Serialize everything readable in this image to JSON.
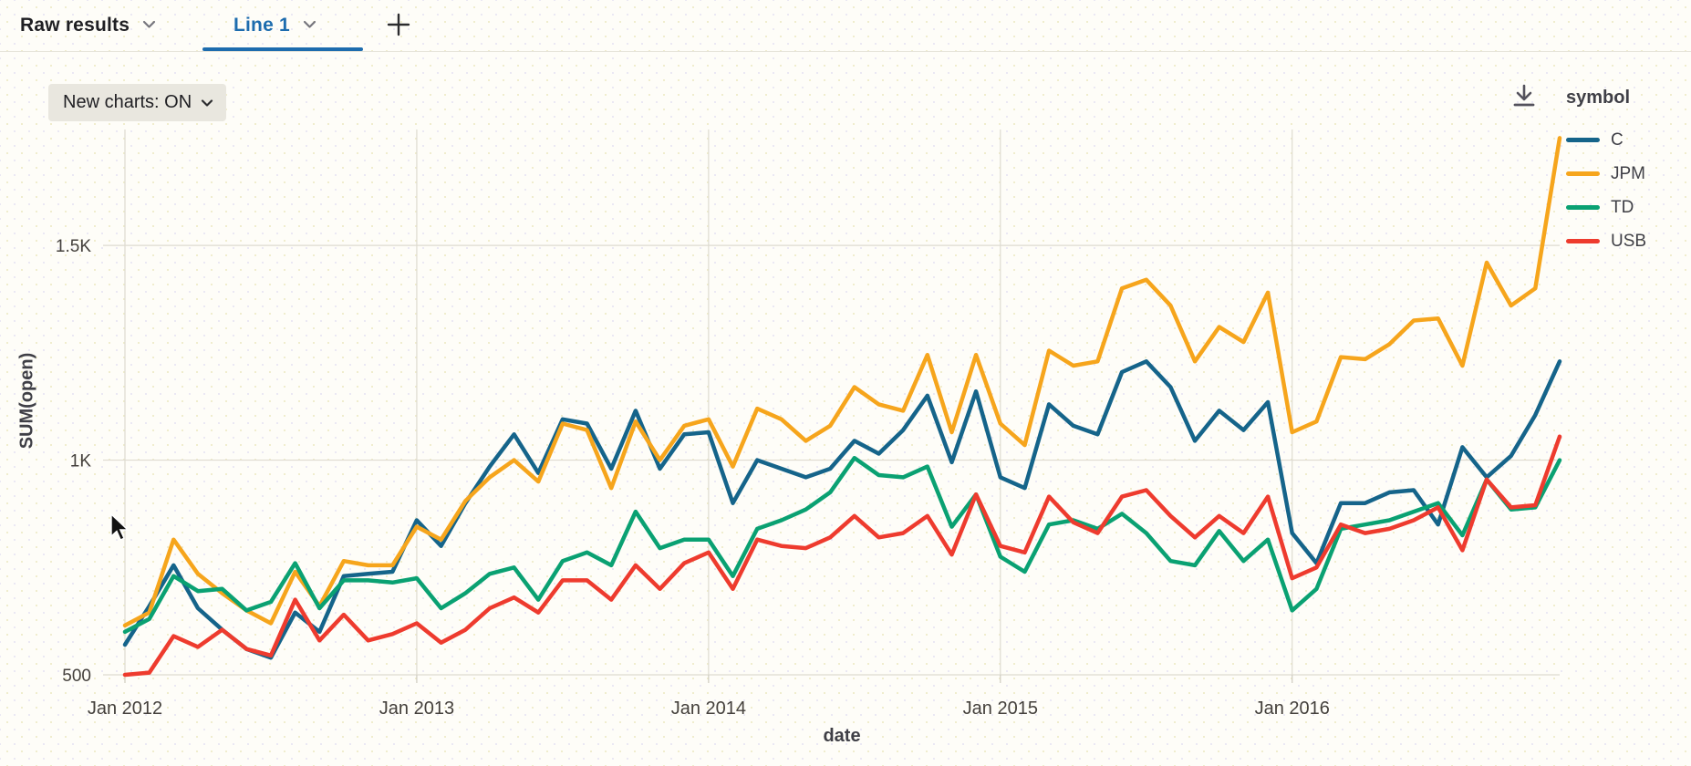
{
  "tabs": {
    "raw_results_label": "Raw results",
    "line1_label": "Line 1"
  },
  "toolbar": {
    "new_charts_label": "New charts: ON"
  },
  "icons": {
    "chevron_down": "chevron-down-icon",
    "plus": "plus-icon",
    "download": "download-icon"
  },
  "legend": {
    "title": "symbol",
    "items": [
      {
        "label": "C",
        "color": "#15648a"
      },
      {
        "label": "JPM",
        "color": "#f6a51c"
      },
      {
        "label": "TD",
        "color": "#0aa172"
      },
      {
        "label": "USB",
        "color": "#ee3b2e"
      }
    ]
  },
  "chart_data": {
    "type": "line",
    "title": "",
    "xlabel": "date",
    "ylabel": "SUM(open)",
    "legend_position": "right",
    "grid": true,
    "ylim": [
      500,
      1770
    ],
    "y_ticks": [
      {
        "value": 500,
        "label": "500"
      },
      {
        "value": 1000,
        "label": "1K"
      },
      {
        "value": 1500,
        "label": "1.5K"
      }
    ],
    "x_ticks": [
      {
        "month_index": 0,
        "label": "Jan 2012"
      },
      {
        "month_index": 12,
        "label": "Jan 2013"
      },
      {
        "month_index": 24,
        "label": "Jan 2014"
      },
      {
        "month_index": 36,
        "label": "Jan 2015"
      },
      {
        "month_index": 48,
        "label": "Jan 2016"
      }
    ],
    "x": [
      "2012-01",
      "2012-02",
      "2012-03",
      "2012-04",
      "2012-05",
      "2012-06",
      "2012-07",
      "2012-08",
      "2012-09",
      "2012-10",
      "2012-11",
      "2012-12",
      "2013-01",
      "2013-02",
      "2013-03",
      "2013-04",
      "2013-05",
      "2013-06",
      "2013-07",
      "2013-08",
      "2013-09",
      "2013-10",
      "2013-11",
      "2013-12",
      "2014-01",
      "2014-02",
      "2014-03",
      "2014-04",
      "2014-05",
      "2014-06",
      "2014-07",
      "2014-08",
      "2014-09",
      "2014-10",
      "2014-11",
      "2014-12",
      "2015-01",
      "2015-02",
      "2015-03",
      "2015-04",
      "2015-05",
      "2015-06",
      "2015-07",
      "2015-08",
      "2015-09",
      "2015-10",
      "2015-11",
      "2015-12",
      "2016-01",
      "2016-02",
      "2016-03",
      "2016-04",
      "2016-05",
      "2016-06",
      "2016-07",
      "2016-08",
      "2016-09",
      "2016-10",
      "2016-11",
      "2016-12"
    ],
    "series": [
      {
        "name": "C",
        "color": "#15648a",
        "values": [
          570,
          660,
          755,
          655,
          605,
          560,
          540,
          645,
          600,
          730,
          735,
          740,
          860,
          800,
          900,
          985,
          1060,
          970,
          1095,
          1085,
          980,
          1115,
          980,
          1060,
          1065,
          900,
          1000,
          980,
          960,
          980,
          1045,
          1015,
          1070,
          1150,
          995,
          1160,
          960,
          935,
          1130,
          1080,
          1060,
          1205,
          1230,
          1170,
          1045,
          1115,
          1070,
          1135,
          830,
          760,
          900,
          900,
          925,
          930,
          850,
          1030,
          960,
          1010,
          1105,
          1230
        ]
      },
      {
        "name": "JPM",
        "color": "#f6a51c",
        "values": [
          615,
          645,
          815,
          735,
          690,
          650,
          620,
          740,
          660,
          765,
          755,
          755,
          845,
          815,
          905,
          960,
          1000,
          950,
          1085,
          1070,
          935,
          1090,
          1000,
          1080,
          1095,
          985,
          1120,
          1095,
          1045,
          1080,
          1170,
          1130,
          1115,
          1245,
          1065,
          1245,
          1085,
          1035,
          1255,
          1220,
          1230,
          1400,
          1420,
          1360,
          1230,
          1310,
          1275,
          1390,
          1065,
          1090,
          1240,
          1235,
          1270,
          1325,
          1330,
          1220,
          1460,
          1360,
          1400,
          1750
        ]
      },
      {
        "name": "TD",
        "color": "#0aa172",
        "values": [
          600,
          630,
          730,
          695,
          700,
          650,
          670,
          760,
          655,
          720,
          720,
          715,
          725,
          655,
          690,
          735,
          750,
          675,
          765,
          785,
          755,
          880,
          795,
          815,
          815,
          730,
          840,
          860,
          885,
          925,
          1005,
          965,
          960,
          985,
          845,
          920,
          775,
          740,
          850,
          860,
          840,
          875,
          830,
          765,
          755,
          835,
          765,
          815,
          650,
          700,
          840,
          850,
          860,
          880,
          900,
          825,
          955,
          885,
          890,
          1000
        ]
      },
      {
        "name": "USB",
        "color": "#ee3b2e",
        "values": [
          500,
          505,
          590,
          565,
          605,
          560,
          545,
          675,
          580,
          640,
          580,
          595,
          620,
          575,
          605,
          655,
          680,
          645,
          720,
          720,
          675,
          755,
          700,
          760,
          785,
          700,
          815,
          800,
          795,
          820,
          870,
          820,
          830,
          870,
          780,
          920,
          800,
          785,
          915,
          855,
          830,
          915,
          930,
          870,
          820,
          870,
          830,
          915,
          725,
          750,
          850,
          830,
          840,
          860,
          890,
          790,
          955,
          890,
          895,
          1055
        ]
      }
    ]
  }
}
